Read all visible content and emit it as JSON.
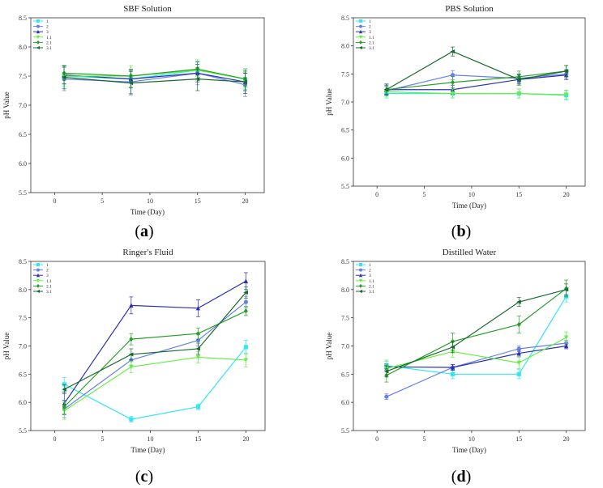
{
  "colors": {
    "s1": "#33e6f0",
    "s2": "#6680e8",
    "s3": "#2a30b0",
    "s11": "#66ee44",
    "s21": "#28a028",
    "s31": "#1a6a30"
  },
  "marker_shapes": [
    "square",
    "circle",
    "triangle",
    "down-triangle",
    "diamond",
    "left-triangle"
  ],
  "captions": [
    {
      "open": "(",
      "letter": "a",
      "close": ")"
    },
    {
      "open": "(",
      "letter": "b",
      "close": ")"
    },
    {
      "open": "(",
      "letter": "c",
      "close": ")"
    },
    {
      "open": "(",
      "letter": "d",
      "close": ")"
    }
  ],
  "chart_data": [
    {
      "type": "line",
      "title": "SBF Solution",
      "xlabel": "Time (Day)",
      "ylabel": "pH Value",
      "xlim": [
        -2.5,
        22
      ],
      "ylim": [
        5.5,
        8.5
      ],
      "xticks": [
        0,
        5,
        10,
        15,
        20
      ],
      "yticks": [
        5.5,
        6.0,
        6.5,
        7.0,
        7.5,
        8.0,
        8.5
      ],
      "x": [
        1,
        8,
        15,
        20
      ],
      "legend": [
        "1",
        "2",
        "3",
        "1.1",
        "2.1",
        "3.1"
      ],
      "legend_position": "top-left",
      "series": [
        {
          "name": "1",
          "values": [
            7.5,
            7.45,
            7.6,
            7.45
          ],
          "error": [
            0.15,
            0.15,
            0.15,
            0.15
          ]
        },
        {
          "name": "2",
          "values": [
            7.45,
            7.4,
            7.55,
            7.35
          ],
          "error": [
            0.2,
            0.2,
            0.2,
            0.2
          ]
        },
        {
          "name": "3",
          "values": [
            7.52,
            7.45,
            7.55,
            7.4
          ],
          "error": [
            0.15,
            0.15,
            0.15,
            0.15
          ]
        },
        {
          "name": "1.1",
          "values": [
            7.5,
            7.5,
            7.6,
            7.45
          ],
          "error": [
            0.18,
            0.18,
            0.18,
            0.18
          ]
        },
        {
          "name": "2.1",
          "values": [
            7.55,
            7.5,
            7.62,
            7.45
          ],
          "error": [
            0.12,
            0.12,
            0.12,
            0.12
          ]
        },
        {
          "name": "3.1",
          "values": [
            7.48,
            7.38,
            7.45,
            7.4
          ],
          "error": [
            0.2,
            0.2,
            0.2,
            0.2
          ]
        }
      ]
    },
    {
      "type": "line",
      "title": "PBS Solution",
      "xlabel": "Time (Day)",
      "ylabel": "pH Value",
      "xlim": [
        -2.5,
        22
      ],
      "ylim": [
        5.5,
        8.5
      ],
      "xticks": [
        0,
        5,
        10,
        15,
        20
      ],
      "yticks": [
        5.5,
        6.0,
        6.5,
        7.0,
        7.5,
        8.0,
        8.5
      ],
      "x": [
        1,
        8,
        15,
        20
      ],
      "legend": [
        "1",
        "2",
        "3",
        "1.1",
        "2.1",
        "3.1"
      ],
      "legend_position": "top-left",
      "series": [
        {
          "name": "1",
          "values": [
            7.15,
            7.15,
            7.15,
            7.12
          ],
          "error": [
            0.08,
            0.08,
            0.08,
            0.08
          ]
        },
        {
          "name": "2",
          "values": [
            7.2,
            7.48,
            7.42,
            7.5
          ],
          "error": [
            0.08,
            0.08,
            0.08,
            0.08
          ]
        },
        {
          "name": "3",
          "values": [
            7.22,
            7.22,
            7.4,
            7.48
          ],
          "error": [
            0.08,
            0.08,
            0.08,
            0.08
          ]
        },
        {
          "name": "1.1",
          "values": [
            7.18,
            7.15,
            7.15,
            7.13
          ],
          "error": [
            0.08,
            0.08,
            0.08,
            0.08
          ]
        },
        {
          "name": "2.1",
          "values": [
            7.22,
            7.35,
            7.45,
            7.55
          ],
          "error": [
            0.1,
            0.1,
            0.1,
            0.1
          ]
        },
        {
          "name": "3.1",
          "values": [
            7.22,
            7.9,
            7.4,
            7.55
          ],
          "error": [
            0.1,
            0.08,
            0.1,
            0.1
          ]
        }
      ]
    },
    {
      "type": "line",
      "title": "Ringer's Fluid",
      "xlabel": "Time (Day)",
      "ylabel": "pH Value",
      "xlim": [
        -2.5,
        22
      ],
      "ylim": [
        5.5,
        8.5
      ],
      "xticks": [
        0,
        5,
        10,
        15,
        20
      ],
      "yticks": [
        5.5,
        6.0,
        6.5,
        7.0,
        7.5,
        8.0,
        8.5
      ],
      "x": [
        1,
        8,
        15,
        20
      ],
      "legend": [
        "1",
        "2",
        "3",
        "1.1",
        "2.1",
        "3.1"
      ],
      "legend_position": "top-left",
      "series": [
        {
          "name": "1",
          "values": [
            6.32,
            5.7,
            5.92,
            6.98
          ],
          "error": [
            0.12,
            0.05,
            0.05,
            0.12
          ]
        },
        {
          "name": "2",
          "values": [
            5.88,
            6.75,
            7.1,
            7.78
          ],
          "error": [
            0.15,
            0.1,
            0.1,
            0.1
          ]
        },
        {
          "name": "3",
          "values": [
            5.98,
            7.72,
            7.67,
            8.15
          ],
          "error": [
            0.2,
            0.15,
            0.15,
            0.15
          ]
        },
        {
          "name": "1.1",
          "values": [
            5.85,
            6.63,
            6.8,
            6.75
          ],
          "error": [
            0.15,
            0.1,
            0.1,
            0.12
          ]
        },
        {
          "name": "2.1",
          "values": [
            5.92,
            7.12,
            7.22,
            7.62
          ],
          "error": [
            0.12,
            0.1,
            0.1,
            0.08
          ]
        },
        {
          "name": "3.1",
          "values": [
            6.23,
            6.85,
            6.95,
            7.95
          ],
          "error": [
            0.08,
            0.1,
            0.1,
            0.1
          ]
        }
      ]
    },
    {
      "type": "line",
      "title": "Distilled Water",
      "xlabel": "Time (Day)",
      "ylabel": "pH Value",
      "xlim": [
        -2.5,
        22
      ],
      "ylim": [
        5.5,
        8.5
      ],
      "xticks": [
        0,
        5,
        10,
        15,
        20
      ],
      "yticks": [
        5.5,
        6.0,
        6.5,
        7.0,
        7.5,
        8.0,
        8.5
      ],
      "x": [
        1,
        8,
        15,
        20
      ],
      "legend": [
        "1",
        "2",
        "3",
        "1.1",
        "2.1",
        "3.1"
      ],
      "legend_position": "top-left",
      "series": [
        {
          "name": "1",
          "values": [
            6.65,
            6.5,
            6.5,
            7.88
          ],
          "error": [
            0.08,
            0.08,
            0.08,
            0.1
          ]
        },
        {
          "name": "2",
          "values": [
            6.1,
            6.62,
            6.95,
            7.05
          ],
          "error": [
            0.05,
            0.05,
            0.05,
            0.05
          ]
        },
        {
          "name": "3",
          "values": [
            6.63,
            6.62,
            6.87,
            7.0
          ],
          "error": [
            0.05,
            0.05,
            0.05,
            0.05
          ]
        },
        {
          "name": "1.1",
          "values": [
            6.6,
            6.9,
            6.7,
            7.15
          ],
          "error": [
            0.15,
            0.1,
            0.1,
            0.1
          ]
        },
        {
          "name": "2.1",
          "values": [
            6.48,
            7.08,
            7.38,
            8.02
          ],
          "error": [
            0.12,
            0.15,
            0.15,
            0.15
          ]
        },
        {
          "name": "3.1",
          "values": [
            6.55,
            6.98,
            7.78,
            8.0
          ],
          "error": [
            0.1,
            0.1,
            0.08,
            0.1
          ]
        }
      ]
    }
  ]
}
